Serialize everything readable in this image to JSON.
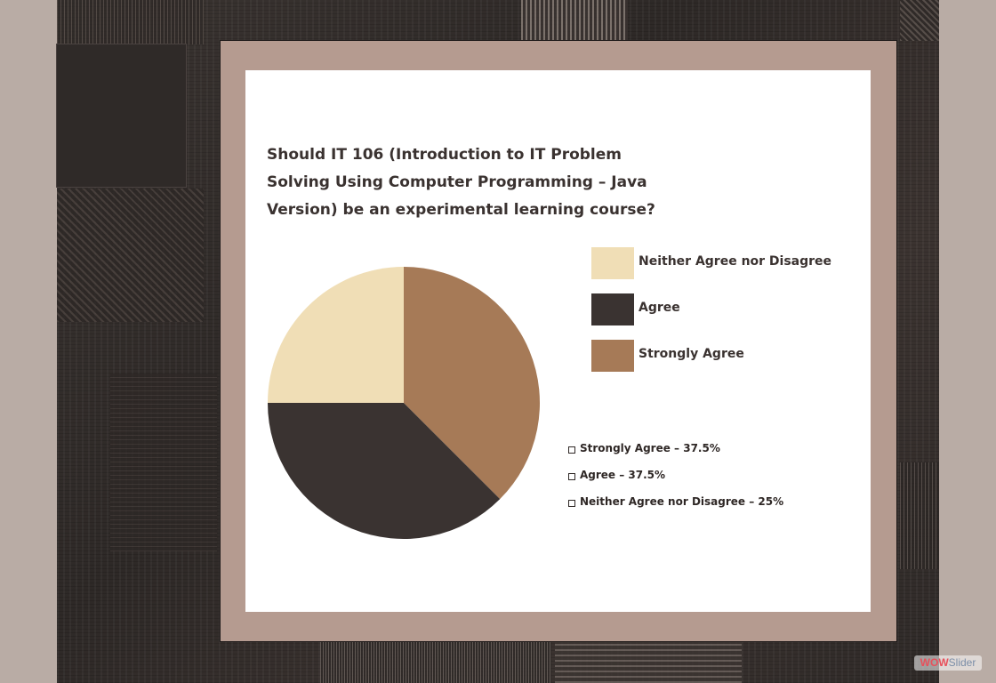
{
  "slide": {
    "title": "Should IT 106 (Introduction to IT Problem Solving Using Computer Programming – Java Version) be an experimental learning course?"
  },
  "chart_data": {
    "type": "pie",
    "title": "Should IT 106 (Introduction to IT Problem Solving Using Computer Programming – Java Version) be an experimental learning course?",
    "categories": [
      "Neither Agree nor Disagree",
      "Agree",
      "Strongly Agree"
    ],
    "values": [
      25,
      37.5,
      37.5
    ],
    "colors": [
      "#f0deb6",
      "#3a3331",
      "#a67a57"
    ],
    "slice_order": [
      "Strongly Agree",
      "Agree",
      "Neither Agree nor Disagree"
    ],
    "start_angle": "12 o'clock, clockwise",
    "legend_placement": "right",
    "annotations": [
      "Strongly Agree – 37.5%",
      "Agree – 37.5%",
      "Neither Agree nor Disagree – 25%"
    ]
  },
  "watermark": {
    "brand_a": "WOW",
    "brand_b": "Slider"
  }
}
